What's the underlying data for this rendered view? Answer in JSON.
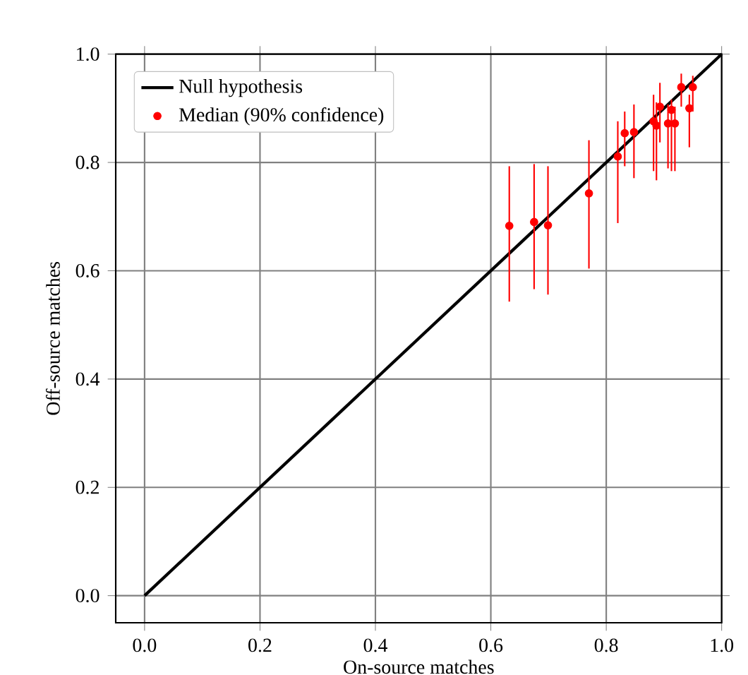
{
  "chart_data": {
    "type": "scatter",
    "xlabel": "On-source matches",
    "ylabel": "Off-source matches",
    "xlim": [
      -0.05,
      1.0
    ],
    "ylim": [
      -0.05,
      1.0
    ],
    "xticks": [
      {
        "value": 0,
        "label": "0.0"
      },
      {
        "value": 0.2,
        "label": "0.2"
      },
      {
        "value": 0.4,
        "label": "0.4"
      },
      {
        "value": 0.6,
        "label": "0.6"
      },
      {
        "value": 0.8,
        "label": "0.8"
      },
      {
        "value": 1.0,
        "label": "1.0"
      }
    ],
    "yticks": [
      {
        "value": 0,
        "label": "0.0"
      },
      {
        "value": 0.2,
        "label": "0.2"
      },
      {
        "value": 0.4,
        "label": "0.4"
      },
      {
        "value": 0.6,
        "label": "0.6"
      },
      {
        "value": 0.8,
        "label": "0.8"
      },
      {
        "value": 1.0,
        "label": "1.0"
      }
    ],
    "grid": true,
    "legend": "top left",
    "series": [
      {
        "name": "Null hypothesis",
        "type": "line",
        "color": "#000000",
        "marker": "none",
        "x": [
          0,
          1
        ],
        "values": [
          0,
          1
        ]
      },
      {
        "name": "Median (90% confidence)",
        "color": "#ff0000",
        "marker": "circle",
        "x": [
          0.632,
          0.675,
          0.699,
          0.77,
          0.82,
          0.832,
          0.848,
          0.882,
          0.887,
          0.893,
          0.913,
          0.907,
          0.919,
          0.93,
          0.95,
          0.944
        ],
        "values": [
          0.683,
          0.69,
          0.684,
          0.743,
          0.811,
          0.854,
          0.856,
          0.876,
          0.868,
          0.903,
          0.897,
          0.872,
          0.872,
          0.939,
          0.939,
          0.9
        ],
        "errors": [
          [
            0.543,
            0.793
          ],
          [
            0.566,
            0.797
          ],
          [
            0.556,
            0.793
          ],
          [
            0.604,
            0.841
          ],
          [
            0.688,
            0.876
          ],
          [
            0.793,
            0.894
          ],
          [
            0.771,
            0.907
          ],
          [
            0.784,
            0.925
          ],
          [
            0.767,
            0.911
          ],
          [
            0.837,
            0.947
          ],
          [
            0.784,
            0.916
          ],
          [
            0.789,
            0.907
          ],
          [
            0.784,
            0.903
          ],
          [
            0.903,
            0.964
          ],
          [
            0.894,
            0.96
          ],
          [
            0.828,
            0.925
          ]
        ]
      }
    ]
  }
}
